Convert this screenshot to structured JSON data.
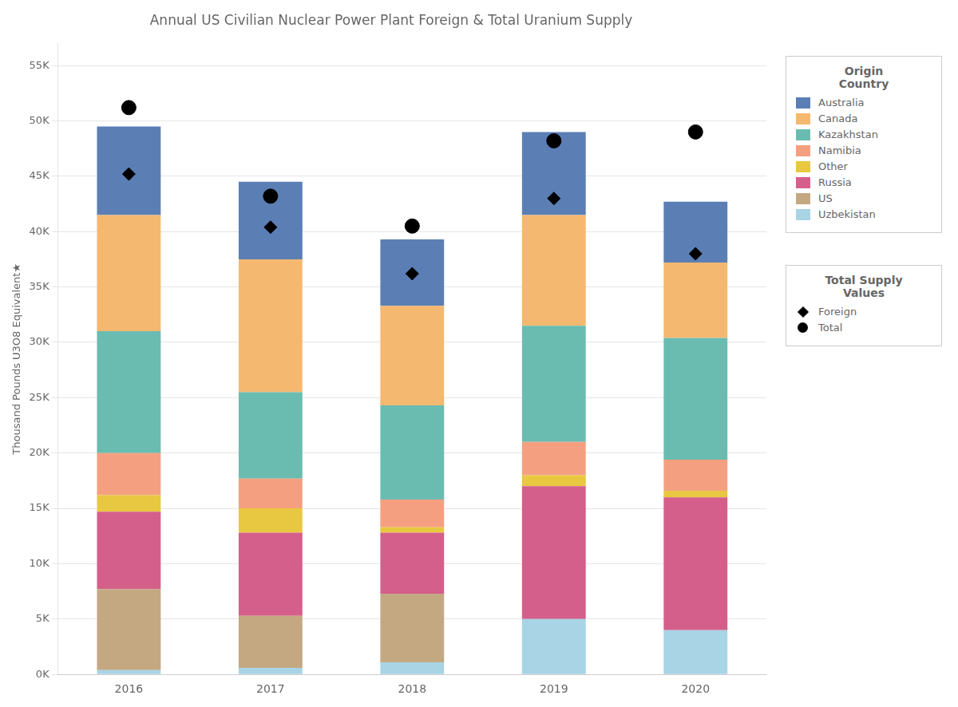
{
  "chart_data": {
    "type": "bar",
    "stacked": true,
    "title": "Annual US Civilian Nuclear Power Plant Foreign & Total Uranium Supply",
    "ylabel": "Thousand Pounds U3O8 Equivalent★",
    "categories": [
      "2016",
      "2017",
      "2018",
      "2019",
      "2020"
    ],
    "series": [
      {
        "name": "Uzbekistan",
        "color": "#a8d4e6",
        "values": [
          400,
          600,
          1100,
          5000,
          4000
        ]
      },
      {
        "name": "US",
        "color": "#c4a882",
        "values": [
          7300,
          4700,
          6200,
          0,
          0
        ]
      },
      {
        "name": "Russia",
        "color": "#d45f8a",
        "values": [
          7000,
          7500,
          5500,
          12000,
          12000
        ]
      },
      {
        "name": "Other",
        "color": "#e8c840",
        "values": [
          1500,
          2200,
          500,
          1000,
          600
        ]
      },
      {
        "name": "Namibia",
        "color": "#f4a080",
        "values": [
          3800,
          2700,
          2500,
          3000,
          2800
        ]
      },
      {
        "name": "Kazakhstan",
        "color": "#6abcb0",
        "values": [
          11000,
          7800,
          8500,
          10500,
          11000
        ]
      },
      {
        "name": "Canada",
        "color": "#f5b870",
        "values": [
          10500,
          12000,
          9000,
          10000,
          6800
        ]
      },
      {
        "name": "Australia",
        "color": "#5b7fb5",
        "values": [
          8000,
          7000,
          6000,
          7500,
          5500
        ]
      },
      {
        "name": "Foreign",
        "type": "scatter",
        "marker": "diamond",
        "color": "#000000",
        "values": [
          45200,
          40400,
          36200,
          43000,
          38000
        ]
      },
      {
        "name": "Total",
        "type": "scatter",
        "marker": "circle",
        "color": "#000000",
        "values": [
          51200,
          43200,
          40500,
          48200,
          49000
        ]
      }
    ],
    "ylim": [
      0,
      57000
    ],
    "yticks": [
      {
        "value": 0,
        "label": "0K"
      },
      {
        "value": 5000,
        "label": "5K"
      },
      {
        "value": 10000,
        "label": "10K"
      },
      {
        "value": 15000,
        "label": "15K"
      },
      {
        "value": 20000,
        "label": "20K"
      },
      {
        "value": 25000,
        "label": "25K"
      },
      {
        "value": 30000,
        "label": "30K"
      },
      {
        "value": 35000,
        "label": "35K"
      },
      {
        "value": 40000,
        "label": "40K"
      },
      {
        "value": 45000,
        "label": "45K"
      },
      {
        "value": 50000,
        "label": "50K"
      },
      {
        "value": 55000,
        "label": "55K"
      }
    ],
    "grid": true,
    "legend": "right",
    "legends": [
      {
        "title": "Origin\nCountry",
        "items": [
          "Australia",
          "Canada",
          "Kazakhstan",
          "Namibia",
          "Other",
          "Russia",
          "US",
          "Uzbekistan"
        ]
      },
      {
        "title": "Total Supply\nValues",
        "items": [
          "Foreign",
          "Total"
        ]
      }
    ]
  }
}
